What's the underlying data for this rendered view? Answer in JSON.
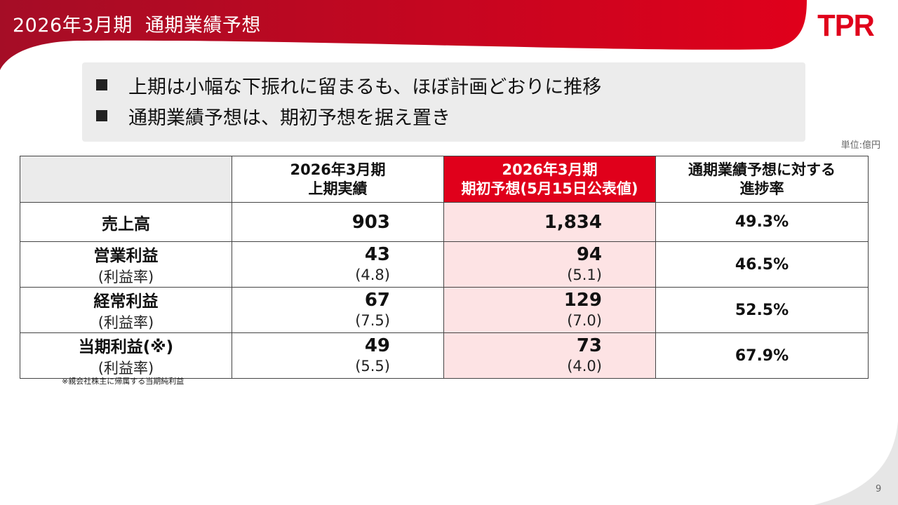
{
  "header": {
    "period": "2026年3月期",
    "title": "通期業績予想",
    "logo": "TPR"
  },
  "bullets": [
    "上期は小幅な下振れに留まるも、ほぼ計画どおりに推移",
    "通期業績予想は、期初予想を据え置き"
  ],
  "unit": "単位:億円",
  "table": {
    "headers": [
      {
        "line1": "2026年3月期",
        "line2": "上期実績"
      },
      {
        "line1": "2026年3月期",
        "line2": "期初予想(5月15日公表値)"
      },
      {
        "line1": "通期業績予想に対する",
        "line2": "進捗率"
      }
    ],
    "rows": [
      {
        "label": "売上高",
        "actual": "903",
        "forecast": "1,834",
        "progress": "49.3%"
      },
      {
        "label": "営業利益",
        "sublabel": "(利益率)",
        "actual": "43",
        "actual_margin": "(4.8)",
        "forecast": "94",
        "forecast_margin": "(5.1)",
        "progress": "46.5%"
      },
      {
        "label": "経常利益",
        "sublabel": "(利益率)",
        "actual": "67",
        "actual_margin": "(7.5)",
        "forecast": "129",
        "forecast_margin": "(7.0)",
        "progress": "52.5%"
      },
      {
        "label": "当期利益(※)",
        "sublabel": "(利益率)",
        "actual": "49",
        "actual_margin": "(5.5)",
        "forecast": "73",
        "forecast_margin": "(4.0)",
        "progress": "67.9%"
      }
    ]
  },
  "note": "※親会社株主に帰属する当期純利益",
  "page": "9",
  "colors": {
    "brand": "#e0001b",
    "pink": "#fde3e4",
    "gray": "#ececec"
  }
}
